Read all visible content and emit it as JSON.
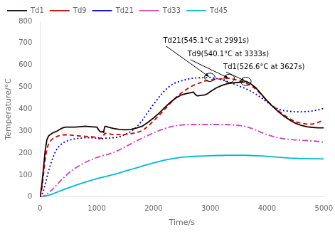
{
  "chart_data": {
    "type": "line",
    "xlabel": "Time/s",
    "ylabel": "Temperature/°C",
    "xlim": [
      0,
      5000
    ],
    "ylim": [
      0,
      800
    ],
    "xticks": [
      0,
      1000,
      2000,
      3000,
      4000,
      5000
    ],
    "yticks": [
      0,
      100,
      200,
      300,
      400,
      500,
      600,
      700,
      800
    ],
    "grid": false,
    "legend": "upper left",
    "annotations": [
      {
        "text": "Td21(545.1°C at 2991s)",
        "xy": [
          2991,
          545.1
        ],
        "xytext": [
          2170,
          710
        ]
      },
      {
        "text": "Td9(540.1°C at 3333s)",
        "xy": [
          3333,
          540.1
        ],
        "xytext": [
          2600,
          648
        ]
      },
      {
        "text": "Td1(526.6°C at 3627s)",
        "xy": [
          3627,
          526.6
        ],
        "xytext": [
          3230,
          592
        ]
      }
    ],
    "series": [
      {
        "name": "Td1",
        "color": "#1a0000",
        "line_style": "solid",
        "x": [
          0,
          30,
          60,
          90,
          120,
          150,
          200,
          250,
          300,
          350,
          400,
          450,
          500,
          600,
          700,
          800,
          900,
          1000,
          1050,
          1080,
          1100,
          1120,
          1140,
          1160,
          1200,
          1300,
          1400,
          1500,
          1600,
          1700,
          1800,
          1900,
          2000,
          2100,
          2200,
          2300,
          2400,
          2500,
          2600,
          2650,
          2700,
          2720,
          2740,
          2760,
          2780,
          2800,
          2850,
          2900,
          2950,
          3000,
          3100,
          3200,
          3300,
          3400,
          3500,
          3600,
          3627,
          3700,
          3800,
          3900,
          4000,
          4100,
          4200,
          4300,
          4400,
          4500,
          4600,
          4700,
          4800,
          4900,
          5000
        ],
        "values": [
          0,
          50,
          130,
          210,
          260,
          278,
          288,
          295,
          300,
          308,
          315,
          318,
          318,
          318,
          320,
          322,
          320,
          318,
          300,
          296,
          298,
          295,
          320,
          322,
          318,
          312,
          308,
          306,
          308,
          314,
          322,
          340,
          360,
          382,
          408,
          432,
          452,
          466,
          472,
          475,
          478,
          472,
          466,
          462,
          460,
          462,
          463,
          465,
          470,
          480,
          496,
          508,
          516,
          520,
          522,
          524,
          526.6,
          518,
          498,
          468,
          438,
          412,
          388,
          368,
          350,
          336,
          326,
          320,
          317,
          315,
          315
        ]
      },
      {
        "name": "Td9",
        "color": "#cc0000",
        "line_style": "dashed",
        "x": [
          0,
          30,
          60,
          90,
          120,
          150,
          200,
          250,
          300,
          350,
          400,
          500,
          600,
          700,
          800,
          900,
          1000,
          1050,
          1080,
          1100,
          1140,
          1160,
          1200,
          1300,
          1400,
          1500,
          1600,
          1700,
          1800,
          1900,
          2000,
          2100,
          2200,
          2300,
          2400,
          2500,
          2600,
          2700,
          2800,
          2900,
          3000,
          3100,
          3200,
          3300,
          3333,
          3400,
          3500,
          3600,
          3700,
          3800,
          3900,
          4000,
          4100,
          4200,
          4300,
          4400,
          4500,
          4600,
          4700,
          4800,
          4900,
          5000
        ],
        "values": [
          0,
          35,
          100,
          170,
          218,
          242,
          260,
          270,
          276,
          280,
          283,
          283,
          280,
          278,
          276,
          274,
          272,
          268,
          268,
          270,
          290,
          290,
          288,
          284,
          284,
          285,
          288,
          293,
          302,
          322,
          346,
          372,
          400,
          428,
          455,
          476,
          494,
          508,
          518,
          528,
          532,
          536,
          538,
          540,
          540.1,
          537,
          530,
          522,
          510,
          492,
          466,
          438,
          414,
          393,
          373,
          356,
          343,
          336,
          332,
          332,
          340,
          350
        ]
      },
      {
        "name": "Td21",
        "color": "#0000bb",
        "line_style": "dotted",
        "x": [
          0,
          30,
          60,
          90,
          120,
          150,
          200,
          250,
          300,
          350,
          400,
          500,
          600,
          700,
          800,
          900,
          1000,
          1050,
          1100,
          1140,
          1160,
          1200,
          1300,
          1400,
          1500,
          1600,
          1700,
          1800,
          1900,
          2000,
          2100,
          2200,
          2300,
          2400,
          2500,
          2600,
          2700,
          2800,
          2900,
          2991,
          3000,
          3100,
          3200,
          3300,
          3400,
          3500,
          3600,
          3700,
          3800,
          3900,
          4000,
          4100,
          4200,
          4300,
          4400,
          4500,
          4600,
          4700,
          4800,
          4900,
          5000
        ],
        "values": [
          0,
          10,
          28,
          55,
          88,
          118,
          160,
          195,
          220,
          235,
          246,
          258,
          264,
          268,
          270,
          270,
          268,
          265,
          265,
          268,
          268,
          268,
          270,
          274,
          284,
          298,
          318,
          348,
          386,
          422,
          456,
          486,
          508,
          522,
          530,
          537,
          541,
          543,
          544,
          545.1,
          544,
          540,
          534,
          526,
          516,
          506,
          496,
          484,
          469,
          452,
          432,
          413,
          400,
          393,
          390,
          388,
          388,
          389,
          392,
          397,
          403
        ]
      },
      {
        "name": "Td33",
        "color": "#cc44bb",
        "line_style": "dashdot",
        "x": [
          0,
          30,
          60,
          90,
          120,
          150,
          200,
          250,
          300,
          400,
          500,
          600,
          700,
          800,
          900,
          1000,
          1100,
          1200,
          1300,
          1400,
          1500,
          1600,
          1700,
          1800,
          1900,
          2000,
          2100,
          2200,
          2300,
          2400,
          2500,
          2600,
          2700,
          2800,
          2900,
          3000,
          3100,
          3200,
          3300,
          3400,
          3500,
          3600,
          3700,
          3800,
          3900,
          4000,
          4100,
          4200,
          4300,
          4400,
          4500,
          4600,
          4700,
          4800,
          4900,
          5000
        ],
        "values": [
          0,
          1,
          4,
          8,
          13,
          19,
          30,
          43,
          57,
          84,
          108,
          128,
          144,
          158,
          170,
          180,
          188,
          194,
          203,
          215,
          228,
          242,
          256,
          268,
          280,
          292,
          303,
          312,
          320,
          325,
          328,
          330,
          330,
          330,
          330,
          330,
          330,
          330,
          330,
          328,
          326,
          322,
          315,
          305,
          294,
          284,
          276,
          270,
          265,
          262,
          260,
          258,
          257,
          255,
          253,
          250
        ]
      },
      {
        "name": "Td45",
        "color": "#00bbcc",
        "line_style": "solid",
        "x": [
          0,
          30,
          60,
          90,
          120,
          150,
          200,
          250,
          300,
          400,
          500,
          600,
          700,
          800,
          900,
          1000,
          1100,
          1200,
          1300,
          1400,
          1500,
          1600,
          1700,
          1800,
          1900,
          2000,
          2100,
          2200,
          2300,
          2400,
          2500,
          2600,
          2700,
          2800,
          2900,
          3000,
          3100,
          3200,
          3300,
          3400,
          3500,
          3600,
          3700,
          3800,
          3900,
          4000,
          4100,
          4200,
          4300,
          4400,
          4500,
          4600,
          4700,
          4800,
          4900,
          5000
        ],
        "values": [
          0,
          1,
          2,
          4,
          6,
          8,
          12,
          17,
          22,
          32,
          42,
          51,
          60,
          68,
          76,
          83,
          90,
          96,
          103,
          110,
          118,
          125,
          133,
          141,
          148,
          155,
          162,
          168,
          173,
          177,
          181,
          183,
          185,
          186,
          187,
          188,
          189,
          189,
          190,
          190,
          190,
          190,
          189,
          188,
          187,
          185,
          183,
          181,
          179,
          177,
          176,
          175,
          175,
          174,
          174,
          173
        ]
      }
    ]
  }
}
